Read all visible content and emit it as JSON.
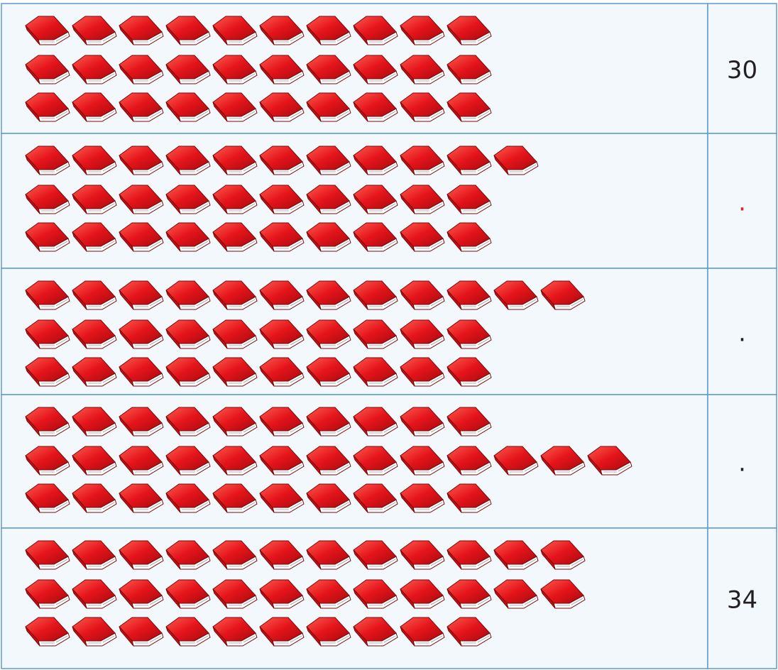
{
  "table": {
    "rows": [
      {
        "lines": [
          10,
          10,
          10
        ],
        "answer": "30",
        "color": "#231f20"
      },
      {
        "lines": [
          11,
          10,
          10
        ],
        "answer": ".",
        "color": "#e8202a"
      },
      {
        "lines": [
          12,
          10,
          10
        ],
        "answer": ".",
        "color": "#231f20"
      },
      {
        "lines": [
          10,
          13,
          10
        ],
        "answer": ".",
        "color": "#231f20"
      },
      {
        "lines": [
          12,
          12,
          10
        ],
        "answer": "34",
        "color": "#231f20"
      }
    ]
  }
}
